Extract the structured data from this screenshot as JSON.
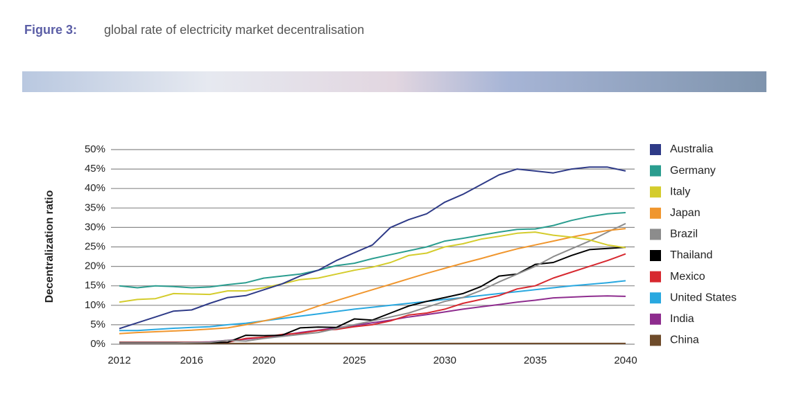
{
  "figure_label": "Figure 3:",
  "chart_data": {
    "type": "line",
    "title": "global rate of electricity market decentralisation",
    "y_label": "Decentralization ratio",
    "x": [
      2012,
      2013,
      2014,
      2015,
      2016,
      2017,
      2018,
      2019,
      2020,
      2021,
      2022,
      2023,
      2024,
      2025,
      2026,
      2027,
      2028,
      2029,
      2030,
      2031,
      2032,
      2033,
      2034,
      2035,
      2036,
      2037,
      2038,
      2039,
      2040
    ],
    "xlim": [
      2012,
      2040
    ],
    "xticks": [
      2012,
      2016,
      2020,
      2025,
      2030,
      2035,
      2040
    ],
    "ylim": [
      0,
      50
    ],
    "yticks": [
      {
        "value": 0,
        "label": "0%"
      },
      {
        "value": 5,
        "label": "5%"
      },
      {
        "value": 10,
        "label": "10%"
      },
      {
        "value": 15,
        "label": "15%"
      },
      {
        "value": 20,
        "label": "20%"
      },
      {
        "value": 25,
        "label": "25%"
      },
      {
        "value": 30,
        "label": "30%"
      },
      {
        "value": 35,
        "label": "35%"
      },
      {
        "value": 40,
        "label": "40%"
      },
      {
        "value": 45,
        "label": "45%"
      },
      {
        "value": 50,
        "label": "50%"
      }
    ],
    "grid": true,
    "legend": "right",
    "series": [
      {
        "name": "Australia",
        "color": "#2e3a87",
        "values": [
          4,
          5.5,
          7,
          8.5,
          8.8,
          10.5,
          12,
          12.5,
          14,
          15.5,
          17.5,
          19,
          21.5,
          23.5,
          25.5,
          30,
          32,
          33.5,
          36.5,
          38.5,
          41,
          43.5,
          45,
          44.5,
          44,
          45,
          45.5,
          45.5,
          44.5
        ]
      },
      {
        "name": "Germany",
        "color": "#2a9d8f",
        "values": [
          15,
          14.5,
          15,
          14.8,
          14.5,
          14.7,
          15.3,
          15.8,
          17,
          17.5,
          18,
          19,
          20.2,
          20.8,
          22,
          23,
          24,
          25,
          26.5,
          27.2,
          28,
          28.8,
          29.5,
          29.6,
          30.5,
          31.8,
          32.8,
          33.5,
          33.8
        ]
      },
      {
        "name": "Italy",
        "color": "#d4cc2c",
        "values": [
          10.8,
          11.5,
          11.7,
          13,
          12.9,
          12.8,
          13.7,
          13.7,
          14.5,
          15.5,
          16.6,
          17,
          18,
          19,
          19.8,
          21,
          22.8,
          23.4,
          25,
          25.8,
          27,
          27.7,
          28.5,
          28.8,
          28,
          27.5,
          26.8,
          25.5,
          24.8
        ]
      },
      {
        "name": "Japan",
        "color": "#f0962e",
        "values": [
          2.7,
          3,
          3.2,
          3.4,
          3.6,
          3.9,
          4.2,
          5,
          6,
          7,
          8.2,
          9.8,
          11.2,
          12.6,
          14,
          15.4,
          16.8,
          18.2,
          19.5,
          20.8,
          22,
          23.3,
          24.5,
          25.5,
          26.5,
          27.5,
          28.4,
          29.2,
          29.7
        ]
      },
      {
        "name": "Brazil",
        "color": "#8c8c8c",
        "values": [
          0.3,
          0.3,
          0.3,
          0.3,
          0.4,
          0.5,
          1,
          0.8,
          1.5,
          2,
          2.5,
          3,
          4,
          5,
          6,
          7,
          8,
          9.5,
          11,
          12,
          13.8,
          16,
          18,
          20,
          22.5,
          24.5,
          26.5,
          28.8,
          31
        ]
      },
      {
        "name": "Thailand",
        "color": "#000000",
        "values": [
          0.4,
          0.4,
          0.4,
          0.4,
          0.4,
          0.4,
          0.5,
          2.3,
          2.2,
          2.3,
          4.2,
          4.4,
          4.3,
          6.5,
          6.2,
          8,
          9.8,
          11,
          12,
          13,
          14.8,
          17.5,
          18,
          20.5,
          21,
          22.8,
          24.3,
          24.6,
          24.9
        ]
      },
      {
        "name": "Mexico",
        "color": "#d7282f",
        "values": [
          0.5,
          0.5,
          0.5,
          0.5,
          0.5,
          0.5,
          0.5,
          1.5,
          1.8,
          2.5,
          2.8,
          3.5,
          3.8,
          4.5,
          5,
          6,
          7.5,
          8,
          9,
          10.5,
          11.5,
          12.5,
          14.2,
          15,
          17,
          18.5,
          20,
          21.5,
          23.2
        ]
      },
      {
        "name": "United States",
        "color": "#29a8e0",
        "values": [
          3.5,
          3.5,
          3.8,
          4.1,
          4.3,
          4.5,
          5,
          5.4,
          6,
          6.6,
          7.2,
          7.8,
          8.4,
          9,
          9.5,
          10,
          10.5,
          11,
          11.5,
          12,
          12.5,
          13,
          13.5,
          14,
          14.5,
          15,
          15.4,
          15.8,
          16.3
        ]
      },
      {
        "name": "India",
        "color": "#8e2c8e",
        "values": [
          0.3,
          0.3,
          0.3,
          0.4,
          0.5,
          0.6,
          1,
          1.3,
          1.8,
          2.3,
          3,
          3.6,
          4.2,
          4.8,
          5.5,
          6.2,
          7,
          7.6,
          8.3,
          9,
          9.6,
          10.2,
          10.8,
          11.3,
          11.9,
          12.1,
          12.3,
          12.4,
          12.3
        ]
      },
      {
        "name": "China",
        "color": "#6e4b2a",
        "values": [
          0.2,
          0.2,
          0.2,
          0.2,
          0.2,
          0.2,
          0.2,
          0.2,
          0.2,
          0.2,
          0.2,
          0.2,
          0.2,
          0.2,
          0.2,
          0.2,
          0.2,
          0.2,
          0.2,
          0.2,
          0.2,
          0.2,
          0.2,
          0.2,
          0.2,
          0.2,
          0.2,
          0.2,
          0.2
        ]
      }
    ]
  }
}
